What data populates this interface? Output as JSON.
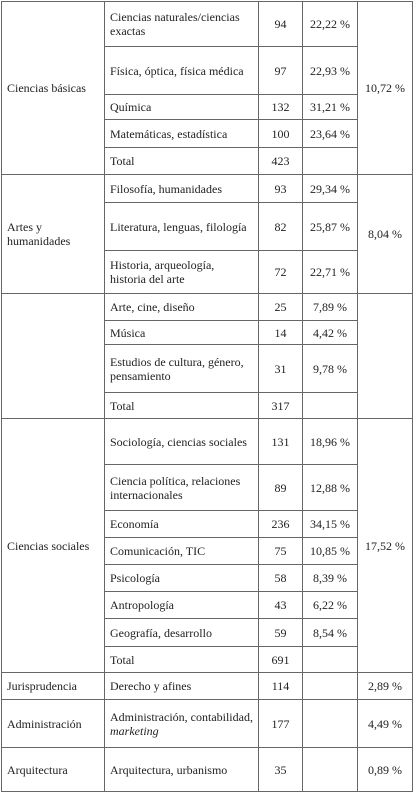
{
  "table": {
    "groups": [
      {
        "area": "Ciencias básicas",
        "area_share": "10,72 %",
        "rows": [
          {
            "subarea": "Ciencias naturales/ciencias exactas",
            "count": 94,
            "share": "22,22 %"
          },
          {
            "subarea": "Física, óptica, física médica",
            "count": 97,
            "share": "22,93 %"
          },
          {
            "subarea": "Química",
            "count": 132,
            "share": "31,21 %"
          },
          {
            "subarea": "Matemáticas, estadística",
            "count": 100,
            "share": "23,64 %"
          },
          {
            "subarea": "Total",
            "count": 423
          }
        ]
      },
      {
        "area": "Artes y humanidades",
        "area_share": "8,04 %",
        "rows": [
          {
            "subarea": "Filosofía, humanidades",
            "count": 93,
            "share": "29,34 %"
          },
          {
            "subarea": "Literatura, lenguas, filología",
            "count": 82,
            "share": "25,87 %"
          },
          {
            "subarea": "Historia, arqueología, historia del arte",
            "count": 72,
            "share": "22,71 %"
          }
        ]
      },
      {
        "rows": [
          {
            "subarea": "Arte, cine, diseño",
            "count": 25,
            "share": "7,89 %"
          },
          {
            "subarea": "Música",
            "count": 14,
            "share": "4,42 %"
          },
          {
            "subarea": "Estudios de cultura, género, pensamiento",
            "count": 31,
            "share": "9,78 %"
          },
          {
            "subarea": "Total",
            "count": 317
          }
        ]
      },
      {
        "area": "Ciencias sociales",
        "area_share": "17,52 %",
        "rows": [
          {
            "subarea": "Sociología, ciencias sociales",
            "count": 131,
            "share": "18,96 %"
          },
          {
            "subarea": "Ciencia política, relaciones internacionales",
            "count": 89,
            "share": "12,88 %"
          },
          {
            "subarea": "Economía",
            "count": 236,
            "share": "34,15 %"
          },
          {
            "subarea": "Comunicación, TIC",
            "count": 75,
            "share": "10,85 %"
          },
          {
            "subarea": "Psicología",
            "count": 58,
            "share": "8,39 %"
          },
          {
            "subarea": "Antropología",
            "count": 43,
            "share": "6,22 %"
          },
          {
            "subarea": "Geografía, desarrollo",
            "count": 59,
            "share": "8,54 %"
          },
          {
            "subarea": "Total",
            "count": 691
          }
        ]
      },
      {
        "area": "Jurisprudencia",
        "area_share": "2,89 %",
        "rows": [
          {
            "subarea": "Derecho y afines",
            "count": 114
          }
        ]
      },
      {
        "area": "Administración",
        "area_share": "4,49 %",
        "rows": [
          {
            "subarea": "Administración, contabilidad,",
            "subarea_em": "marketing",
            "count": 177
          }
        ]
      },
      {
        "area": "Arquitectura",
        "area_share": "0,89 %",
        "rows": [
          {
            "subarea": "Arquitectura, urbanismo",
            "count": 35
          }
        ]
      }
    ]
  }
}
